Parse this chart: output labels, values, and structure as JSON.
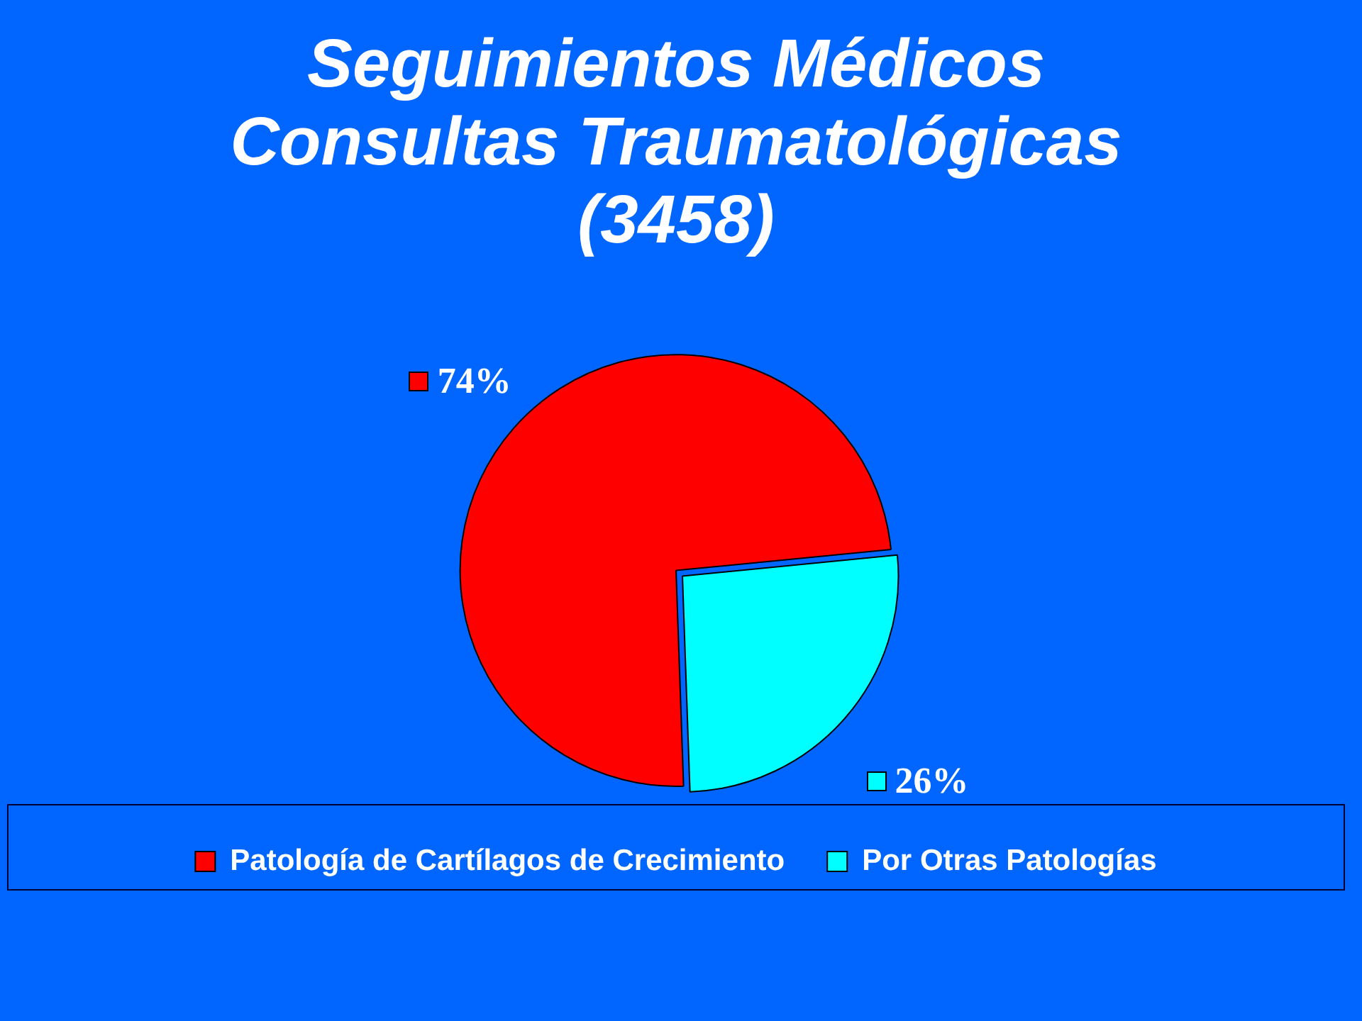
{
  "chart_data": {
    "type": "pie",
    "title": "Seguimientos Médicos\nConsultas Traumatológicas\n(3458)",
    "categories": [
      "Patología de Cartílagos de Crecimiento",
      "Por Otras Patologías"
    ],
    "values": [
      74,
      26
    ],
    "colors": [
      "#ff0000",
      "#00ffff"
    ],
    "value_labels": [
      "74%",
      "26%"
    ],
    "legend": "bottom"
  }
}
